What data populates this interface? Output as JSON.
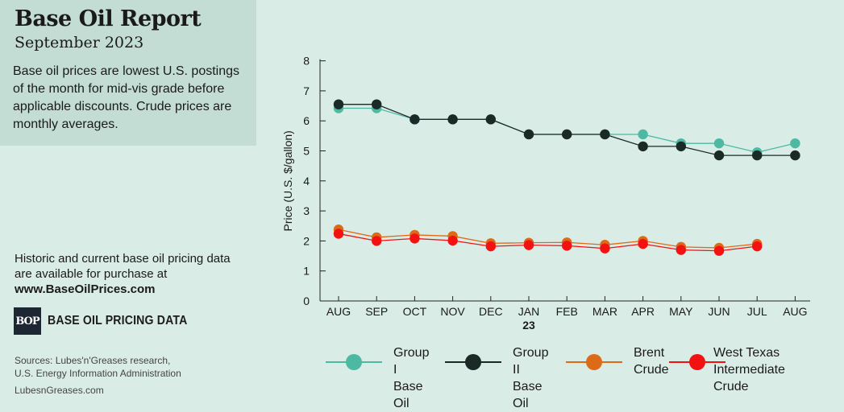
{
  "header": {
    "title": "Base Oil Report",
    "subtitle": "September 2023",
    "description": "Base oil prices are lowest U.S. postings of the month for mid-vis grade before applicable discounts. Crude prices are monthly averages."
  },
  "purchase": {
    "text": "Historic and current base oil pricing data are available for purchase at",
    "url": "www.BaseOilPrices.com"
  },
  "logo": {
    "mark": "BOP",
    "text": "BASE OIL PRICING DATA"
  },
  "sources": {
    "line1": "Sources: Lubes'n'Greases research,",
    "line2": "U.S. Energy Information Administration"
  },
  "site": "LubesnGreases.com",
  "colors": {
    "background": "#daece6",
    "panel": "#c3ddd5",
    "group1": "#4db9a3",
    "group2": "#1b2a26",
    "brent": "#dd6a16",
    "wti": "#f21212"
  },
  "chart_data": {
    "type": "line",
    "categories": [
      "AUG",
      "SEP",
      "OCT",
      "NOV",
      "DEC",
      "JAN",
      "FEB",
      "MAR",
      "APR",
      "MAY",
      "JUN",
      "JUL",
      "AUG"
    ],
    "year_marker": {
      "category_index": 5,
      "label": "23"
    },
    "ylabel": "Price (U.S. $/gallon)",
    "ylim": [
      0,
      8
    ],
    "yticks": [
      0,
      1,
      2,
      3,
      4,
      5,
      6,
      7,
      8
    ],
    "grid": false,
    "legend_position": "bottom",
    "series": [
      {
        "name": "Group I\nBase Oil",
        "color": "#4db9a3",
        "values": [
          6.42,
          6.42,
          6.05,
          6.05,
          6.05,
          5.55,
          5.55,
          5.55,
          5.55,
          5.25,
          5.25,
          4.95,
          5.25
        ]
      },
      {
        "name": "Group II\nBase Oil",
        "color": "#1b2a26",
        "values": [
          6.55,
          6.55,
          6.05,
          6.05,
          6.05,
          5.55,
          5.55,
          5.55,
          5.15,
          5.15,
          4.85,
          4.85,
          4.85
        ]
      },
      {
        "name": "Brent\nCrude",
        "color": "#dd6a16",
        "values": [
          2.38,
          2.12,
          2.2,
          2.16,
          1.92,
          1.94,
          1.95,
          1.87,
          2.0,
          1.8,
          1.77,
          1.9,
          null
        ]
      },
      {
        "name": "West Texas\nIntermediate Crude",
        "color": "#f21212",
        "values": [
          2.24,
          2.0,
          2.08,
          2.01,
          1.82,
          1.86,
          1.84,
          1.75,
          1.9,
          1.7,
          1.67,
          1.82,
          null
        ]
      }
    ]
  }
}
